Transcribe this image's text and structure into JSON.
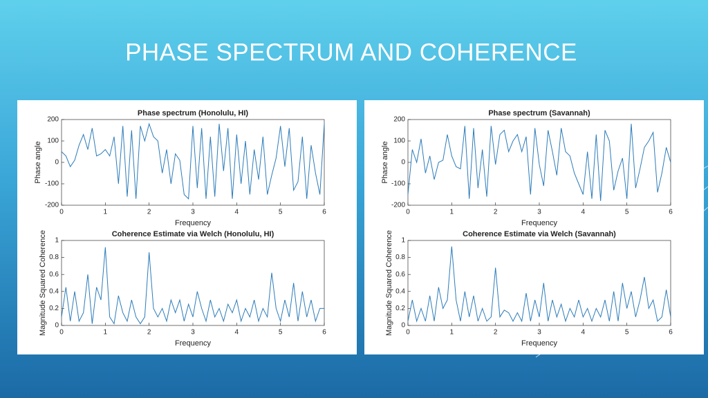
{
  "title": "PHASE SPECTRUM AND COHERENCE",
  "chart_data": [
    {
      "type": "line",
      "title": "Phase spectrum (Honolulu, HI)",
      "xlabel": "Frequency",
      "ylabel": "Phase angle",
      "color": "#2b7bb9",
      "xlim": [
        0,
        6
      ],
      "xticks": [
        0,
        1,
        2,
        3,
        4,
        5,
        6
      ],
      "ylim": [
        -200,
        200
      ],
      "yticks": [
        -200,
        -100,
        0,
        100,
        200
      ],
      "x": [
        0,
        0.1,
        0.2,
        0.3,
        0.4,
        0.5,
        0.6,
        0.7,
        0.8,
        0.9,
        1,
        1.1,
        1.2,
        1.3,
        1.4,
        1.5,
        1.6,
        1.7,
        1.8,
        1.9,
        2,
        2.1,
        2.2,
        2.3,
        2.4,
        2.5,
        2.6,
        2.7,
        2.8,
        2.9,
        3,
        3.1,
        3.2,
        3.3,
        3.4,
        3.5,
        3.6,
        3.7,
        3.8,
        3.9,
        4,
        4.1,
        4.2,
        4.3,
        4.4,
        4.5,
        4.6,
        4.7,
        4.8,
        4.9,
        5,
        5.1,
        5.2,
        5.3,
        5.4,
        5.5,
        5.6,
        5.7,
        5.8,
        5.9,
        6
      ],
      "values": [
        50,
        30,
        -20,
        10,
        80,
        130,
        60,
        160,
        30,
        40,
        60,
        30,
        120,
        -100,
        170,
        -160,
        150,
        -170,
        170,
        100,
        180,
        120,
        100,
        -50,
        60,
        -100,
        40,
        10,
        -150,
        -170,
        170,
        -120,
        160,
        -170,
        120,
        -160,
        180,
        -40,
        160,
        -170,
        130,
        -100,
        100,
        -150,
        60,
        -80,
        120,
        -150,
        -60,
        20,
        170,
        -20,
        160,
        -130,
        -90,
        120,
        -170,
        80,
        -50,
        -150,
        180
      ]
    },
    {
      "type": "line",
      "title": "Coherence Estimate via Welch (Honolulu, HI)",
      "xlabel": "Frequency",
      "ylabel": "Magnitude Squared Coherence",
      "color": "#2b7bb9",
      "xlim": [
        0,
        6
      ],
      "xticks": [
        0,
        1,
        2,
        3,
        4,
        5,
        6
      ],
      "ylim": [
        0,
        1
      ],
      "yticks": [
        0,
        0.2,
        0.4,
        0.6,
        0.8,
        1
      ],
      "x": [
        0,
        0.1,
        0.2,
        0.3,
        0.4,
        0.5,
        0.6,
        0.7,
        0.8,
        0.9,
        1,
        1.1,
        1.2,
        1.3,
        1.4,
        1.5,
        1.6,
        1.7,
        1.8,
        1.9,
        2,
        2.1,
        2.2,
        2.3,
        2.4,
        2.5,
        2.6,
        2.7,
        2.8,
        2.9,
        3,
        3.1,
        3.2,
        3.3,
        3.4,
        3.5,
        3.6,
        3.7,
        3.8,
        3.9,
        4,
        4.1,
        4.2,
        4.3,
        4.4,
        4.5,
        4.6,
        4.7,
        4.8,
        4.9,
        5,
        5.1,
        5.2,
        5.3,
        5.4,
        5.5,
        5.6,
        5.7,
        5.8,
        5.9,
        6
      ],
      "values": [
        0.1,
        0.45,
        0.05,
        0.4,
        0.05,
        0.15,
        0.6,
        0.02,
        0.45,
        0.3,
        0.92,
        0.1,
        0.02,
        0.35,
        0.15,
        0.05,
        0.3,
        0.1,
        0.02,
        0.1,
        0.86,
        0.2,
        0.1,
        0.2,
        0.05,
        0.3,
        0.15,
        0.3,
        0.05,
        0.25,
        0.1,
        0.4,
        0.2,
        0.05,
        0.3,
        0.1,
        0.2,
        0.05,
        0.25,
        0.15,
        0.3,
        0.05,
        0.2,
        0.1,
        0.3,
        0.05,
        0.2,
        0.1,
        0.62,
        0.2,
        0.05,
        0.3,
        0.1,
        0.5,
        0.05,
        0.4,
        0.1,
        0.3,
        0.05,
        0.2,
        0.2
      ]
    },
    {
      "type": "line",
      "title": "Phase spectrum (Savannah)",
      "xlabel": "Frequency",
      "ylabel": "Phase angle",
      "color": "#2b7bb9",
      "xlim": [
        0,
        6
      ],
      "xticks": [
        0,
        1,
        2,
        3,
        4,
        5,
        6
      ],
      "ylim": [
        -200,
        200
      ],
      "yticks": [
        -200,
        -100,
        0,
        100,
        200
      ],
      "x": [
        0,
        0.1,
        0.2,
        0.3,
        0.4,
        0.5,
        0.6,
        0.7,
        0.8,
        0.9,
        1,
        1.1,
        1.2,
        1.3,
        1.4,
        1.5,
        1.6,
        1.7,
        1.8,
        1.9,
        2,
        2.1,
        2.2,
        2.3,
        2.4,
        2.5,
        2.6,
        2.7,
        2.8,
        2.9,
        3,
        3.1,
        3.2,
        3.3,
        3.4,
        3.5,
        3.6,
        3.7,
        3.8,
        3.9,
        4,
        4.1,
        4.2,
        4.3,
        4.4,
        4.5,
        4.6,
        4.7,
        4.8,
        4.9,
        5,
        5.1,
        5.2,
        5.3,
        5.4,
        5.5,
        5.6,
        5.7,
        5.8,
        5.9,
        6
      ],
      "values": [
        -150,
        60,
        0,
        110,
        -50,
        30,
        -80,
        0,
        10,
        130,
        30,
        -20,
        -30,
        170,
        -170,
        160,
        -120,
        60,
        -160,
        170,
        -10,
        130,
        150,
        50,
        100,
        130,
        50,
        120,
        -150,
        160,
        -10,
        -110,
        150,
        50,
        -60,
        160,
        50,
        30,
        -50,
        -100,
        -150,
        50,
        -170,
        130,
        -180,
        150,
        100,
        -130,
        -40,
        20,
        -170,
        180,
        -120,
        -30,
        70,
        100,
        140,
        -140,
        -50,
        70,
        0
      ]
    },
    {
      "type": "line",
      "title": "Coherence Estimate via Welch (Savannah)",
      "xlabel": "Frequency",
      "ylabel": "Magnitude Squared Coherence",
      "color": "#2b7bb9",
      "xlim": [
        0,
        6
      ],
      "xticks": [
        0,
        1,
        2,
        3,
        4,
        5,
        6
      ],
      "ylim": [
        0,
        1
      ],
      "yticks": [
        0,
        0.2,
        0.4,
        0.6,
        0.8,
        1
      ],
      "x": [
        0,
        0.1,
        0.2,
        0.3,
        0.4,
        0.5,
        0.6,
        0.7,
        0.8,
        0.9,
        1,
        1.1,
        1.2,
        1.3,
        1.4,
        1.5,
        1.6,
        1.7,
        1.8,
        1.9,
        2,
        2.1,
        2.2,
        2.3,
        2.4,
        2.5,
        2.6,
        2.7,
        2.8,
        2.9,
        3,
        3.1,
        3.2,
        3.3,
        3.4,
        3.5,
        3.6,
        3.7,
        3.8,
        3.9,
        4,
        4.1,
        4.2,
        4.3,
        4.4,
        4.5,
        4.6,
        4.7,
        4.8,
        4.9,
        5,
        5.1,
        5.2,
        5.3,
        5.4,
        5.5,
        5.6,
        5.7,
        5.8,
        5.9,
        6
      ],
      "values": [
        0.05,
        0.3,
        0.05,
        0.2,
        0.05,
        0.35,
        0.05,
        0.45,
        0.2,
        0.3,
        0.93,
        0.3,
        0.05,
        0.4,
        0.1,
        0.35,
        0.05,
        0.2,
        0.05,
        0.1,
        0.68,
        0.1,
        0.18,
        0.15,
        0.05,
        0.15,
        0.05,
        0.38,
        0.05,
        0.3,
        0.1,
        0.5,
        0.05,
        0.3,
        0.1,
        0.25,
        0.05,
        0.2,
        0.1,
        0.3,
        0.1,
        0.2,
        0.05,
        0.2,
        0.1,
        0.3,
        0.05,
        0.4,
        0.05,
        0.5,
        0.2,
        0.4,
        0.1,
        0.3,
        0.57,
        0.2,
        0.3,
        0.05,
        0.1,
        0.42,
        0.1
      ]
    }
  ]
}
